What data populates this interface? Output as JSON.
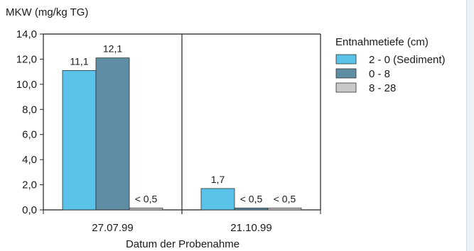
{
  "chart_data": {
    "type": "bar",
    "ylabel": "MKW (mg/kg TG)",
    "xlabel": "Datum der Probenahme",
    "ylim": [
      0,
      14
    ],
    "yticks": [
      "0,0",
      "2,0",
      "4,0",
      "6,0",
      "8,0",
      "10,0",
      "12,0",
      "14,0"
    ],
    "grid": false,
    "legend_position": "right",
    "categories": [
      "27.07.99",
      "21.10.99"
    ],
    "legend_title": "Entnahmetiefe (cm)",
    "series": [
      {
        "name": "2 - 0 (Sediment)",
        "color": "#5bc2ea",
        "values": [
          11.1,
          1.7
        ],
        "labels": [
          "11,1",
          "1,7"
        ]
      },
      {
        "name": "0 - 8",
        "color": "#5e8da4",
        "values": [
          12.1,
          0.15
        ],
        "labels": [
          "12,1",
          "< 0,5"
        ]
      },
      {
        "name": "8 - 28",
        "color": "#c8c8c8",
        "values": [
          0.15,
          0.15
        ],
        "labels": [
          "< 0,5",
          "< 0,5"
        ]
      }
    ]
  }
}
